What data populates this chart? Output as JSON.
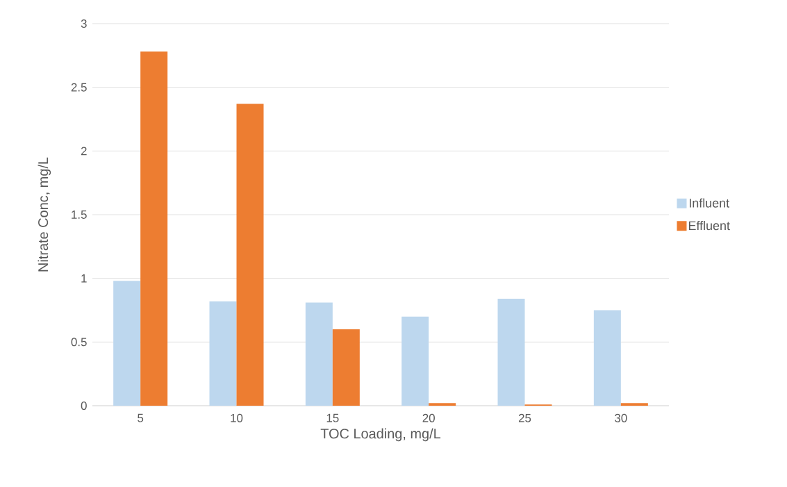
{
  "chart_data": {
    "type": "bar",
    "xlabel": "TOC Loading, mg/L",
    "ylabel": "Nitrate Conc, mg/L",
    "categories": [
      "5",
      "10",
      "15",
      "20",
      "25",
      "30"
    ],
    "series": [
      {
        "name": "Influent",
        "color": "#bdd7ee",
        "values": [
          0.98,
          0.82,
          0.81,
          0.7,
          0.84,
          0.75
        ]
      },
      {
        "name": "Effluent",
        "color": "#ed7d31",
        "values": [
          2.78,
          2.37,
          0.6,
          0.02,
          0.01,
          0.02
        ]
      }
    ],
    "ylim": [
      0,
      3
    ],
    "yticks": [
      0,
      0.5,
      1,
      1.5,
      2,
      2.5,
      3
    ],
    "grid": "y",
    "legend": "right"
  }
}
